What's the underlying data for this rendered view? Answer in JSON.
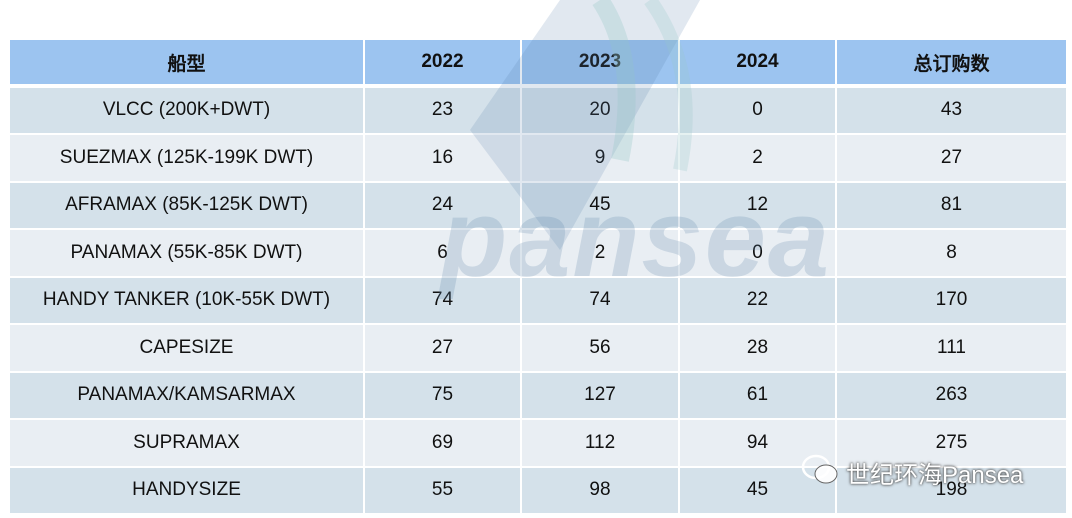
{
  "table": {
    "header": [
      "船型",
      "2022",
      "2023",
      "2024",
      "总订购数"
    ],
    "rows": [
      [
        "VLCC (200K+DWT)",
        23,
        20,
        0,
        43
      ],
      [
        "SUEZMAX (125K-199K DWT)",
        16,
        9,
        2,
        27
      ],
      [
        "AFRAMAX (85K-125K DWT)",
        24,
        45,
        12,
        81
      ],
      [
        "PANAMAX (55K-85K DWT)",
        6,
        2,
        0,
        8
      ],
      [
        "HANDY TANKER (10K-55K DWT)",
        74,
        74,
        22,
        170
      ],
      [
        "CAPESIZE",
        27,
        56,
        28,
        111
      ],
      [
        "PANAMAX/KAMSARMAX",
        75,
        127,
        61,
        263
      ],
      [
        "SUPRAMAX",
        69,
        112,
        94,
        275
      ],
      [
        "HANDYSIZE",
        55,
        98,
        45,
        198
      ]
    ]
  },
  "watermark": {
    "logo": "pansea",
    "caption": "世纪环海Pansea"
  }
}
